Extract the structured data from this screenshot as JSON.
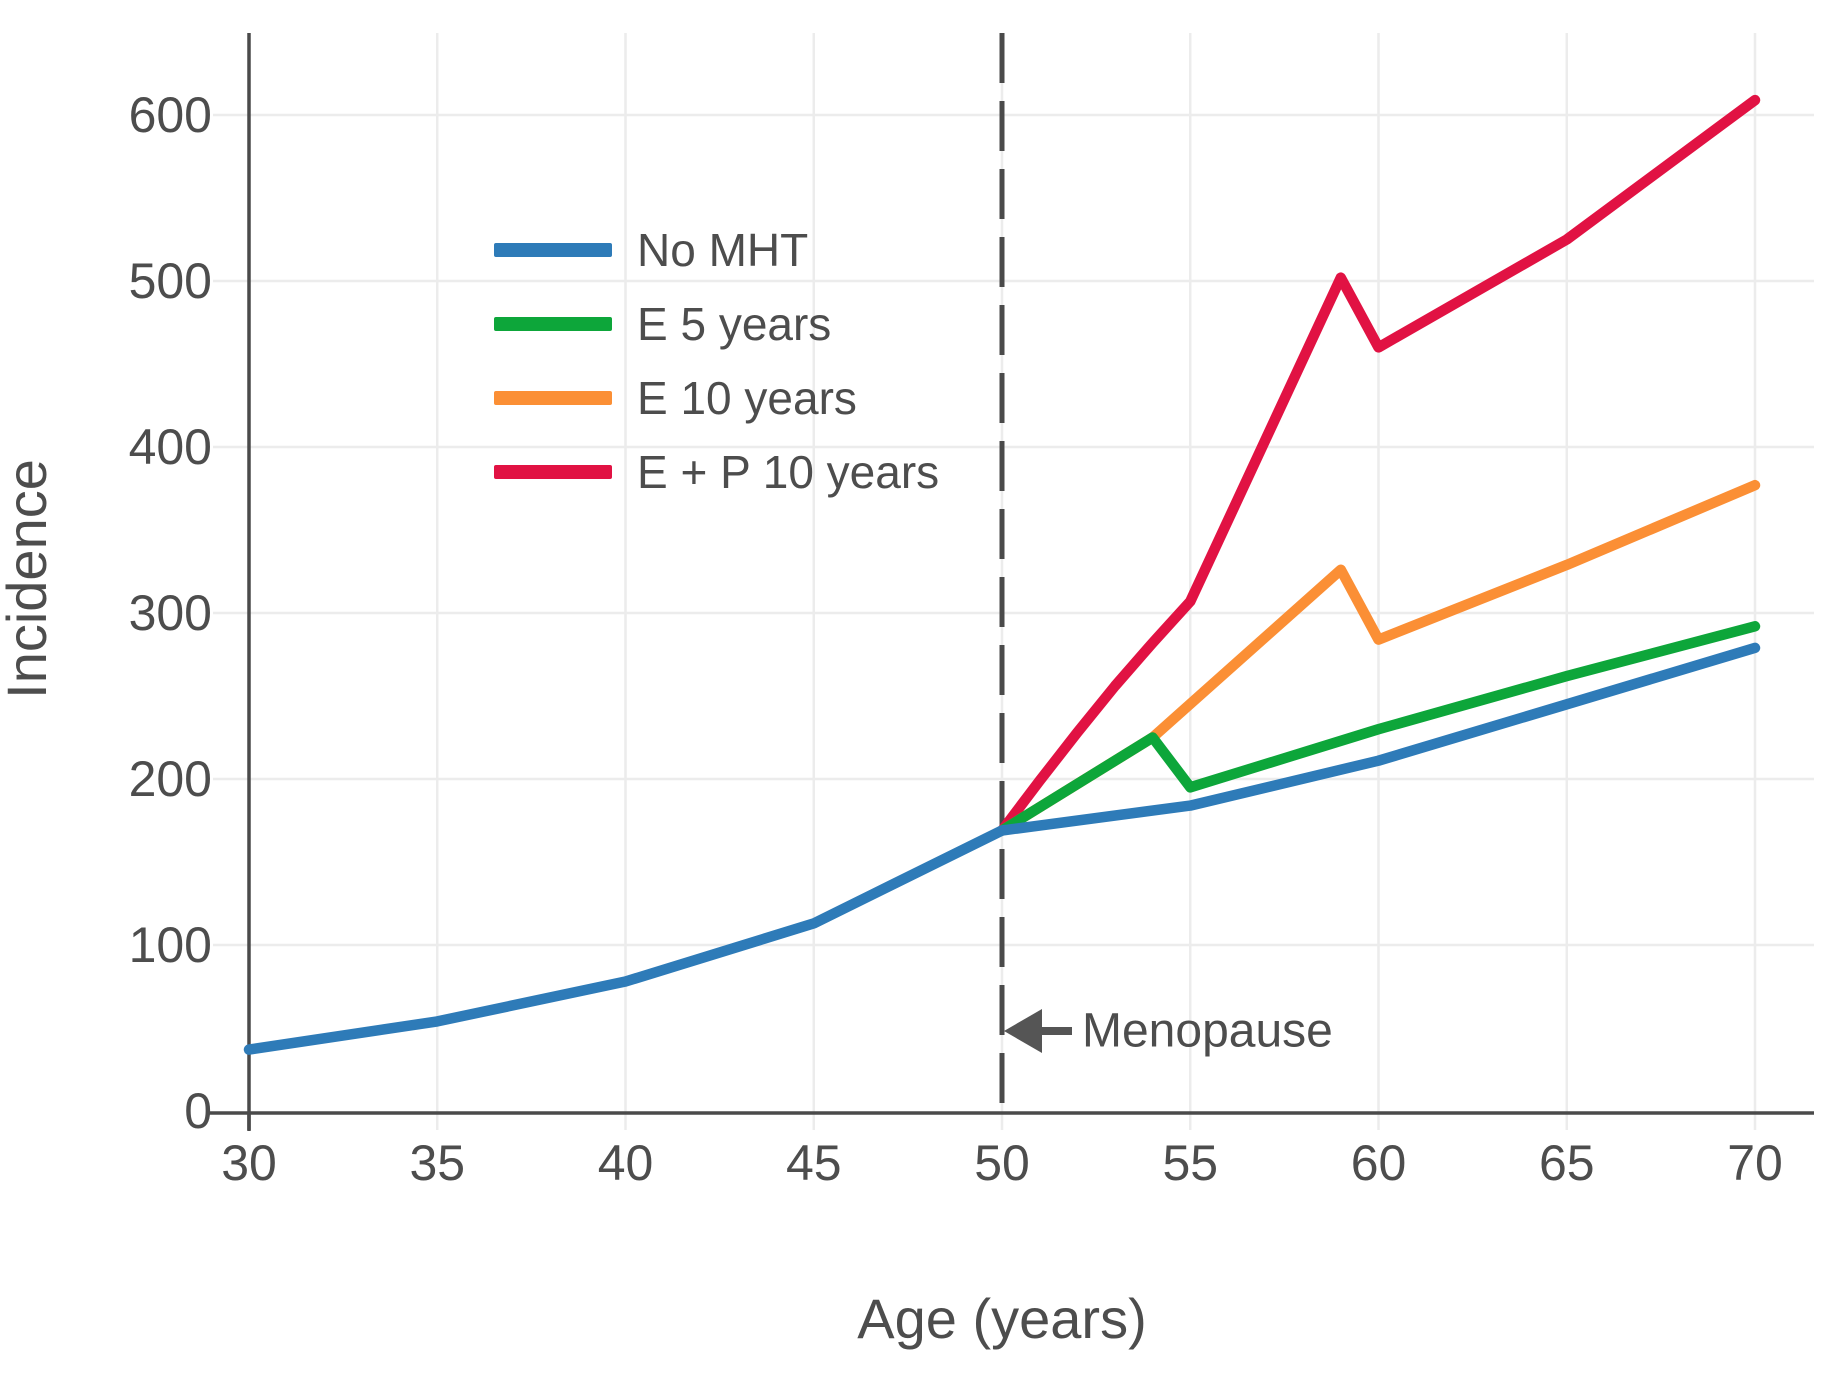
{
  "figure": {
    "background": "#ffffff",
    "text_color": "#4d4d4d",
    "axis_color": "#4a4a4a",
    "grid_color": "#ececec",
    "dashed_line_color": "#4a4a4a",
    "arrow_color": "#555555"
  },
  "chart_data": {
    "type": "line",
    "title": "",
    "xlabel": "Age (years)",
    "ylabel": "Incidence",
    "xlim": [
      30,
      70
    ],
    "ylim": [
      0,
      660
    ],
    "x_ticks": [
      30,
      35,
      40,
      45,
      50,
      55,
      60,
      65,
      70
    ],
    "y_ticks": [
      0,
      100,
      200,
      300,
      400,
      500,
      600
    ],
    "grid": true,
    "legend_position": "upper-left-inside",
    "menopause_line_x": 50,
    "annotation": {
      "text": "Menopause",
      "arrow_direction": "left",
      "x": 50,
      "y": 48
    },
    "series": [
      {
        "name": "No MHT",
        "color": "#2e7bb8",
        "points": [
          [
            30,
            37
          ],
          [
            35,
            54
          ],
          [
            40,
            78
          ],
          [
            45,
            113
          ],
          [
            50,
            169
          ],
          [
            55,
            184
          ],
          [
            60,
            211
          ],
          [
            65,
            245
          ],
          [
            70,
            279
          ]
        ]
      },
      {
        "name": "E 5 years",
        "color": "#0da63a",
        "points": [
          [
            50,
            169
          ],
          [
            54,
            225
          ],
          [
            55,
            195
          ],
          [
            60,
            230
          ],
          [
            65,
            262
          ],
          [
            70,
            292
          ]
        ]
      },
      {
        "name": "E 10 years",
        "color": "#fb8f35",
        "points": [
          [
            50,
            169
          ],
          [
            54,
            225
          ],
          [
            59,
            326
          ],
          [
            60,
            284
          ],
          [
            65,
            329
          ],
          [
            70,
            377
          ]
        ]
      },
      {
        "name": "E + P 10 years",
        "color": "#e11243",
        "points": [
          [
            50,
            169
          ],
          [
            51,
            199
          ],
          [
            52,
            228
          ],
          [
            53,
            256
          ],
          [
            54,
            282
          ],
          [
            55,
            307
          ],
          [
            59,
            502
          ],
          [
            60,
            460
          ],
          [
            65,
            525
          ],
          [
            70,
            609
          ]
        ]
      }
    ]
  }
}
